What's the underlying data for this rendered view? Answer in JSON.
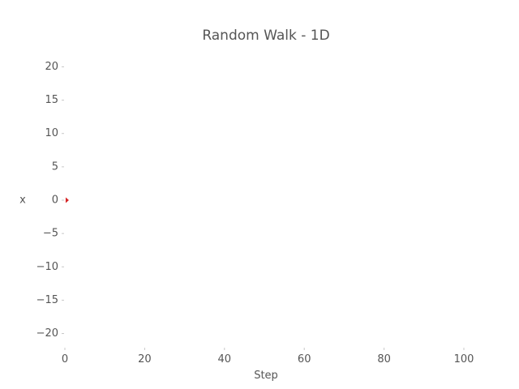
{
  "chart_data": {
    "type": "scatter",
    "title": "Random Walk - 1D",
    "xlabel": "Step",
    "ylabel": "x",
    "xlim": [
      0,
      100
    ],
    "ylim": [
      -22,
      22
    ],
    "x_ticks": [
      0,
      20,
      40,
      60,
      80,
      100
    ],
    "y_ticks": [
      20,
      15,
      10,
      5,
      0,
      -5,
      -10,
      -15,
      -20
    ],
    "x_tick_labels": [
      "0",
      "20",
      "40",
      "60",
      "80",
      "100"
    ],
    "y_tick_labels": [
      "20",
      "15",
      "10",
      "5",
      "0",
      "−5",
      "−10",
      "−15",
      "−20"
    ],
    "grid": false,
    "series": [
      {
        "color": "#d62728",
        "points": [
          {
            "x": 0.5,
            "y": 0
          }
        ]
      }
    ]
  }
}
